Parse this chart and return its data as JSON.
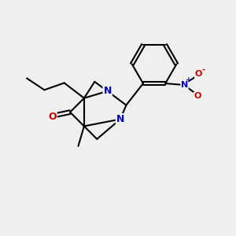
{
  "background_color": "#efefef",
  "bond_color": "#000000",
  "nitrogen_color": "#0000cc",
  "oxygen_color": "#cc0000",
  "fig_width": 3.0,
  "fig_height": 3.0,
  "dpi": 100,
  "lw": 1.5,
  "xlim": [
    0,
    10
  ],
  "ylim": [
    0,
    10
  ]
}
